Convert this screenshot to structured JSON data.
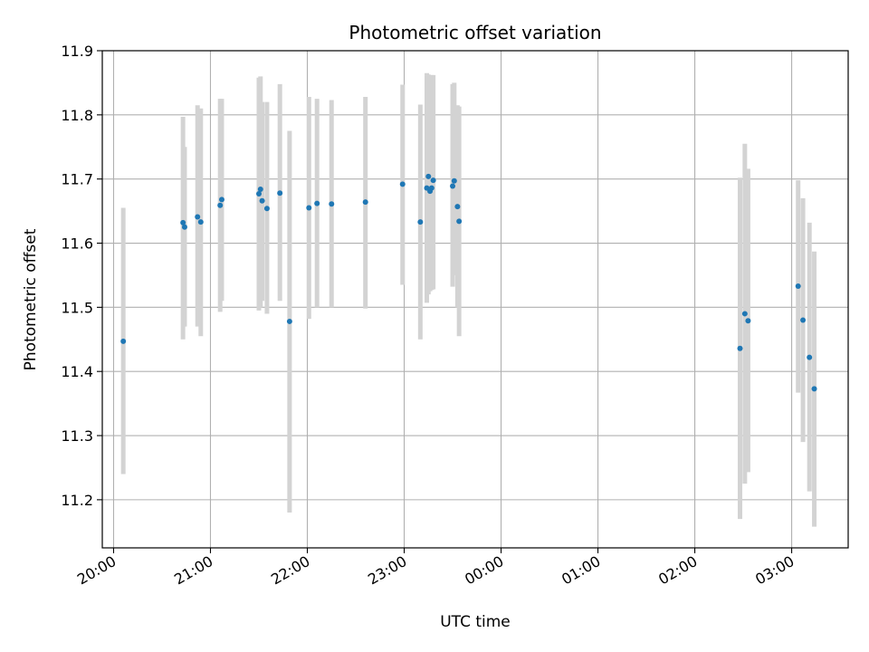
{
  "chart_data": {
    "type": "scatter",
    "title": "Photometric offset variation",
    "xlabel": "UTC time",
    "ylabel": "Photometric offset",
    "x_unit": "UTC time (HH:MM), night spanning midnight",
    "xlim": [
      "19:53",
      "03:35"
    ],
    "ylim": [
      11.125,
      11.9
    ],
    "x_ticks": [
      "20:00",
      "21:00",
      "22:00",
      "23:00",
      "00:00",
      "01:00",
      "02:00",
      "03:00"
    ],
    "y_ticks": [
      "11.2",
      "11.3",
      "11.4",
      "11.5",
      "11.6",
      "11.7",
      "11.8",
      "11.9"
    ],
    "grid": true,
    "colors": {
      "point": "#1f77b4",
      "errorbar": "#d3d3d3",
      "grid": "#b0b0b0",
      "axes": "#000000"
    },
    "points": [
      {
        "t": "20:06",
        "y": 11.447,
        "low": 11.24,
        "high": 11.655
      },
      {
        "t": "20:43",
        "y": 11.632,
        "low": 11.45,
        "high": 11.797
      },
      {
        "t": "20:44",
        "y": 11.625,
        "low": 11.47,
        "high": 11.75
      },
      {
        "t": "20:52",
        "y": 11.641,
        "low": 11.47,
        "high": 11.815
      },
      {
        "t": "20:54",
        "y": 11.633,
        "low": 11.455,
        "high": 11.81
      },
      {
        "t": "21:06",
        "y": 11.659,
        "low": 11.493,
        "high": 11.825
      },
      {
        "t": "21:07",
        "y": 11.668,
        "low": 11.51,
        "high": 11.825
      },
      {
        "t": "21:30",
        "y": 11.677,
        "low": 11.495,
        "high": 11.858
      },
      {
        "t": "21:31",
        "y": 11.684,
        "low": 11.5,
        "high": 11.86
      },
      {
        "t": "21:32",
        "y": 11.666,
        "low": 11.51,
        "high": 11.82
      },
      {
        "t": "21:35",
        "y": 11.654,
        "low": 11.49,
        "high": 11.82
      },
      {
        "t": "21:43",
        "y": 11.678,
        "low": 11.51,
        "high": 11.848
      },
      {
        "t": "21:49",
        "y": 11.478,
        "low": 11.18,
        "high": 11.775
      },
      {
        "t": "22:01",
        "y": 11.655,
        "low": 11.482,
        "high": 11.828
      },
      {
        "t": "22:06",
        "y": 11.662,
        "low": 11.5,
        "high": 11.825
      },
      {
        "t": "22:15",
        "y": 11.661,
        "low": 11.5,
        "high": 11.823
      },
      {
        "t": "22:36",
        "y": 11.664,
        "low": 11.498,
        "high": 11.828
      },
      {
        "t": "22:59",
        "y": 11.692,
        "low": 11.535,
        "high": 11.847
      },
      {
        "t": "23:10",
        "y": 11.633,
        "low": 11.45,
        "high": 11.816
      },
      {
        "t": "23:14",
        "y": 11.686,
        "low": 11.507,
        "high": 11.865
      },
      {
        "t": "23:15",
        "y": 11.704,
        "low": 11.52,
        "high": 11.863
      },
      {
        "t": "23:16",
        "y": 11.681,
        "low": 11.525,
        "high": 11.84
      },
      {
        "t": "23:17",
        "y": 11.686,
        "low": 11.527,
        "high": 11.862
      },
      {
        "t": "23:18",
        "y": 11.698,
        "low": 11.528,
        "high": 11.862
      },
      {
        "t": "23:30",
        "y": 11.689,
        "low": 11.532,
        "high": 11.848
      },
      {
        "t": "23:31",
        "y": 11.697,
        "low": 11.55,
        "high": 11.85
      },
      {
        "t": "23:33",
        "y": 11.657,
        "low": 11.5,
        "high": 11.815
      },
      {
        "t": "23:34",
        "y": 11.634,
        "low": 11.455,
        "high": 11.813
      },
      {
        "t": "02:28",
        "y": 11.436,
        "low": 11.17,
        "high": 11.702
      },
      {
        "t": "02:31",
        "y": 11.49,
        "low": 11.225,
        "high": 11.755
      },
      {
        "t": "02:33",
        "y": 11.479,
        "low": 11.243,
        "high": 11.716
      },
      {
        "t": "03:04",
        "y": 11.533,
        "low": 11.367,
        "high": 11.698
      },
      {
        "t": "03:07",
        "y": 11.48,
        "low": 11.29,
        "high": 11.67
      },
      {
        "t": "03:11",
        "y": 11.422,
        "low": 11.213,
        "high": 11.632
      },
      {
        "t": "03:14",
        "y": 11.373,
        "low": 11.158,
        "high": 11.587
      }
    ]
  }
}
